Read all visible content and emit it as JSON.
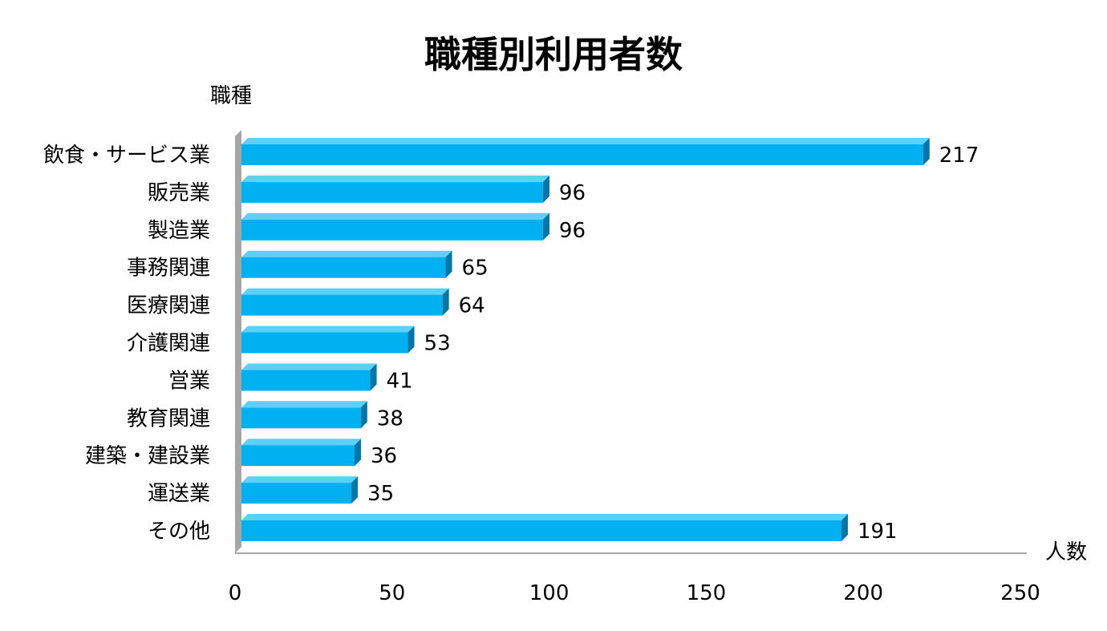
{
  "chart_data": {
    "type": "bar",
    "orientation": "horizontal",
    "title": "職種別利用者数",
    "ylabel": "職種",
    "xlabel": "人数",
    "categories": [
      "飲食・サービス業",
      "販売業",
      "製造業",
      "事務関連",
      "医療関連",
      "介護関連",
      "営業",
      "教育関連",
      "建築・建設業",
      "運送業",
      "その他"
    ],
    "values": [
      217,
      96,
      96,
      65,
      64,
      53,
      41,
      38,
      36,
      35,
      191
    ],
    "data_labels": [
      "217",
      "96",
      "96",
      "65",
      "64",
      "53",
      "41",
      "38",
      "36",
      "35",
      "191"
    ],
    "xlim": [
      0,
      250
    ],
    "x_ticks": [
      0,
      50,
      100,
      150,
      200,
      250
    ],
    "x_tick_labels": [
      "0",
      "50",
      "100",
      "150",
      "200",
      "250"
    ],
    "grid": false,
    "legend": "none",
    "style": "3d",
    "colors": {
      "bar_front": "#00b0f0",
      "bar_top": "#5cd0f7",
      "bar_side": "#0077a8",
      "axis_wall": "#a6a6a6"
    }
  }
}
